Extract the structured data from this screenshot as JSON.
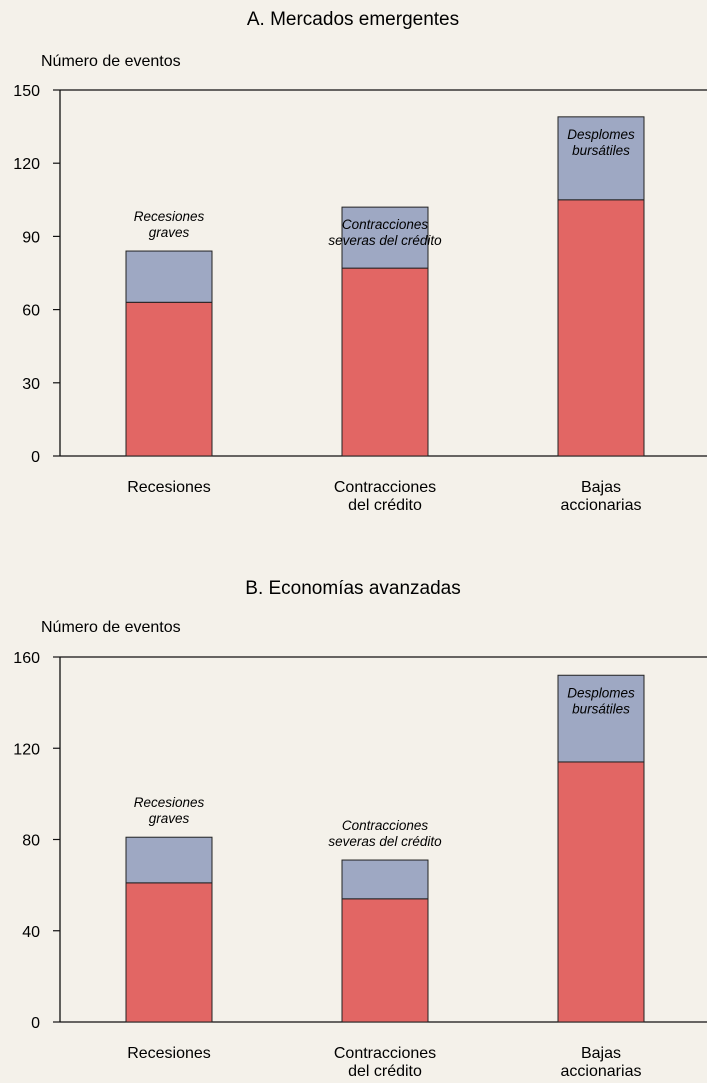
{
  "colors": {
    "base": "#e26664",
    "top": "#9ea8c3",
    "outline": "#222222",
    "background": "#f4f1ea"
  },
  "chart_data": [
    {
      "type": "bar",
      "stacked": true,
      "title": "A. Mercados emergentes",
      "ylabel": "Número de eventos",
      "ylim": [
        0,
        150
      ],
      "yticks": [
        0,
        30,
        60,
        90,
        120,
        150
      ],
      "categories": [
        [
          "Recesiones"
        ],
        [
          "Contracciones",
          "del crédito"
        ],
        [
          "Bajas",
          "accionarias"
        ]
      ],
      "series": [
        {
          "values": [
            63,
            77,
            105
          ]
        },
        {
          "values": [
            21,
            25,
            34
          ]
        }
      ],
      "totals": [
        84,
        102,
        139
      ],
      "annotations": [
        [
          "Recesiones",
          "graves"
        ],
        [
          "Contracciones",
          "severas del crédito"
        ],
        [
          "Desplomes",
          "bursátiles"
        ]
      ]
    },
    {
      "type": "bar",
      "stacked": true,
      "title": "B. Economías avanzadas",
      "ylabel": "Número de eventos",
      "ylim": [
        0,
        160
      ],
      "yticks": [
        0,
        40,
        80,
        120,
        160
      ],
      "categories": [
        [
          "Recesiones"
        ],
        [
          "Contracciones",
          "del crédito"
        ],
        [
          "Bajas",
          "accionarias"
        ]
      ],
      "series": [
        {
          "values": [
            61,
            54,
            114
          ]
        },
        {
          "values": [
            20,
            17,
            38
          ]
        }
      ],
      "totals": [
        81,
        71,
        152
      ],
      "annotations": [
        [
          "Recesiones",
          "graves"
        ],
        [
          "Contracciones",
          "severas del crédito"
        ],
        [
          "Desplomes",
          "bursátiles"
        ]
      ]
    }
  ]
}
